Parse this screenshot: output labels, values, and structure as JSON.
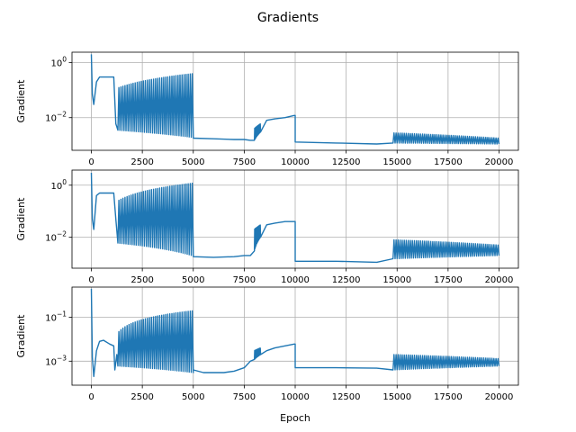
{
  "chart_data": [
    {
      "type": "line",
      "title": "Gradients",
      "xlabel": "",
      "ylabel": "Gradient",
      "yscale": "log",
      "xlim": [
        -950,
        20950
      ],
      "ylim": [
        0.00065,
        2.4
      ],
      "grid": true,
      "line_color": "#1f77b4",
      "xticks": [
        0,
        2500,
        5000,
        7500,
        10000,
        12500,
        15000,
        17500,
        20000
      ],
      "xtick_labels": [
        "0",
        "2500",
        "5000",
        "7500",
        "10000",
        "12500",
        "15000",
        "17500",
        "20000"
      ],
      "yticks": [
        0.01,
        1
      ],
      "ytick_labels": [
        "10^-2",
        "10^0"
      ],
      "series": [
        {
          "x": [
            0,
            50,
            120,
            250,
            400,
            900,
            1100,
            1200,
            1350,
            1500,
            2000,
            2500,
            3000,
            3500,
            4000,
            4500,
            5000,
            5001,
            6000,
            7000,
            7500,
            7800,
            8000,
            8100,
            8300,
            8600,
            9000,
            9500,
            9950,
            10000,
            10001,
            12000,
            14000,
            14800,
            14801,
            16000,
            17500,
            19000,
            20000
          ],
          "y": [
            2.0,
            0.07,
            0.03,
            0.2,
            0.3,
            0.3,
            0.3,
            0.006,
            0.004,
            0.005,
            0.0035,
            0.0028,
            0.0025,
            0.0023,
            0.0021,
            0.002,
            0.0019,
            0.0018,
            0.0017,
            0.0016,
            0.0016,
            0.0015,
            0.002,
            0.0022,
            0.006,
            0.008,
            0.009,
            0.01,
            0.012,
            0.012,
            0.0013,
            0.0012,
            0.0011,
            0.0011,
            0.0015,
            0.0015,
            0.0014,
            0.0014,
            0.0014
          ],
          "oscillation_bands": [
            {
              "x": [
                1300,
                5000
              ],
              "period": 100,
              "low": [
                0.0035,
                0.0019
              ],
              "high": [
                0.12,
                0.4
              ]
            },
            {
              "x": [
                8000,
                8300
              ],
              "period": 30,
              "low": [
                0.0015,
                0.003
              ],
              "high": [
                0.004,
                0.006
              ]
            },
            {
              "x": [
                14800,
                20000
              ],
              "period": 100,
              "low": [
                0.0012,
                0.0011
              ],
              "high": [
                0.0028,
                0.0018
              ]
            }
          ]
        }
      ]
    },
    {
      "type": "line",
      "title": "",
      "xlabel": "",
      "ylabel": "Gradient",
      "yscale": "log",
      "xlim": [
        -950,
        20950
      ],
      "ylim": [
        0.00065,
        3.8
      ],
      "grid": true,
      "line_color": "#1f77b4",
      "xticks": [
        0,
        2500,
        5000,
        7500,
        10000,
        12500,
        15000,
        17500,
        20000
      ],
      "xtick_labels": [
        "0",
        "2500",
        "5000",
        "7500",
        "10000",
        "12500",
        "15000",
        "17500",
        "20000"
      ],
      "yticks": [
        0.01,
        1
      ],
      "ytick_labels": [
        "10^-2",
        "10^0"
      ],
      "series": [
        {
          "x": [
            0,
            50,
            120,
            250,
            400,
            900,
            1100,
            1200,
            1350,
            1500,
            2000,
            2500,
            3000,
            3500,
            4000,
            4500,
            5000,
            5001,
            6000,
            7000,
            7500,
            7800,
            8000,
            8100,
            8300,
            8600,
            9000,
            9500,
            9950,
            10000,
            10001,
            12000,
            14000,
            14800,
            14801,
            16000,
            17500,
            19000,
            20000
          ],
          "y": [
            3.0,
            0.05,
            0.02,
            0.4,
            0.5,
            0.5,
            0.5,
            0.05,
            0.006,
            0.008,
            0.004,
            0.003,
            0.0025,
            0.0022,
            0.002,
            0.0019,
            0.0019,
            0.0018,
            0.0017,
            0.0018,
            0.002,
            0.002,
            0.004,
            0.005,
            0.02,
            0.03,
            0.035,
            0.04,
            0.04,
            0.04,
            0.0012,
            0.0012,
            0.0011,
            0.0011,
            0.003,
            0.003,
            0.003,
            0.003,
            0.003
          ],
          "oscillation_bands": [
            {
              "x": [
                1300,
                5000
              ],
              "period": 100,
              "low": [
                0.006,
                0.0019
              ],
              "high": [
                0.25,
                1.2
              ]
            },
            {
              "x": [
                8000,
                8300
              ],
              "period": 30,
              "low": [
                0.003,
                0.01
              ],
              "high": [
                0.02,
                0.03
              ]
            },
            {
              "x": [
                14800,
                20000
              ],
              "period": 100,
              "low": [
                0.0015,
                0.002
              ],
              "high": [
                0.008,
                0.005
              ]
            }
          ]
        }
      ]
    },
    {
      "type": "line",
      "title": "",
      "xlabel": "Epoch",
      "ylabel": "Gradient",
      "yscale": "log",
      "xlim": [
        -950,
        20950
      ],
      "ylim": [
        8e-05,
        2.4
      ],
      "grid": true,
      "line_color": "#1f77b4",
      "xticks": [
        0,
        2500,
        5000,
        7500,
        10000,
        12500,
        15000,
        17500,
        20000
      ],
      "xtick_labels": [
        "0",
        "2500",
        "5000",
        "7500",
        "10000",
        "12500",
        "15000",
        "17500",
        "20000"
      ],
      "yticks": [
        0.001,
        0.1
      ],
      "ytick_labels": [
        "10^-3",
        "10^-1"
      ],
      "series": [
        {
          "x": [
            0,
            50,
            120,
            250,
            400,
            600,
            900,
            1100,
            1150,
            1250,
            1400,
            2000,
            2500,
            3000,
            3500,
            4000,
            4500,
            5000,
            5001,
            5500,
            6500,
            7000,
            7500,
            7800,
            8000,
            8100,
            8300,
            8600,
            9000,
            9500,
            9950,
            10000,
            10001,
            12000,
            14000,
            14800,
            14801,
            16000,
            17500,
            19000,
            20000
          ],
          "y": [
            2.0,
            0.0015,
            0.0002,
            0.003,
            0.008,
            0.009,
            0.006,
            0.005,
            0.0004,
            0.002,
            0.0006,
            0.0004,
            0.0004,
            0.0004,
            0.0004,
            0.0004,
            0.0004,
            0.0004,
            0.0004,
            0.0003,
            0.0003,
            0.00035,
            0.0005,
            0.001,
            0.0012,
            0.0015,
            0.002,
            0.003,
            0.004,
            0.005,
            0.006,
            0.006,
            0.0005,
            0.0005,
            0.00048,
            0.00048,
            0.0009,
            0.0009,
            0.0009,
            0.0009,
            0.0009
          ],
          "oscillation_bands": [
            {
              "x": [
                1300,
                5000
              ],
              "period": 100,
              "low": [
                0.0006,
                0.0003
              ],
              "high": [
                0.02,
                0.2
              ]
            },
            {
              "x": [
                8000,
                8300
              ],
              "period": 30,
              "low": [
                0.0012,
                0.002
              ],
              "high": [
                0.003,
                0.004
              ]
            },
            {
              "x": [
                14800,
                20000
              ],
              "period": 100,
              "low": [
                0.0004,
                0.0006
              ],
              "high": [
                0.002,
                0.0013
              ]
            }
          ]
        }
      ]
    }
  ]
}
